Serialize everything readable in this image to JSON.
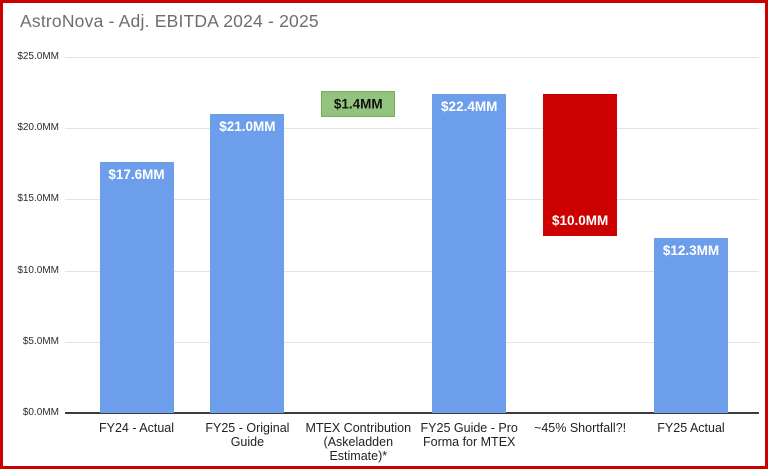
{
  "title": "AstroNova - Adj. EBITDA 2024 - 2025",
  "colors": {
    "frame_border": "#cc0000",
    "bar_blue": "#6d9eeb",
    "bar_red": "#cc0000",
    "bar_green": "#93c47d",
    "gridline": "#e4e4e4",
    "axis_line": "#3c3c3c",
    "title_text": "#6e6e6e"
  },
  "chart_data": {
    "type": "bar",
    "title": "AstroNova - Adj. EBITDA 2024 - 2025",
    "xlabel": "",
    "ylabel": "",
    "ylim": [
      0,
      25
    ],
    "grid": true,
    "legend": "none",
    "yticks": [
      {
        "value": 0,
        "label": "$0.0MM"
      },
      {
        "value": 5,
        "label": "$5.0MM"
      },
      {
        "value": 10,
        "label": "$10.0MM"
      },
      {
        "value": 15,
        "label": "$15.0MM"
      },
      {
        "value": 20,
        "label": "$20.0MM"
      },
      {
        "value": 25,
        "label": "$25.0MM"
      }
    ],
    "bars": [
      {
        "category": "FY24 - Actual",
        "start": 0,
        "end": 17.6,
        "value": 17.6,
        "label": "$17.6MM",
        "color": "blue",
        "label_position": "top"
      },
      {
        "category": "FY25 - Original Guide",
        "start": 0,
        "end": 21.0,
        "value": 21.0,
        "label": "$21.0MM",
        "color": "blue",
        "label_position": "top"
      },
      {
        "category": "MTEX Contribution (Askeladden Estimate)*",
        "start": 21.0,
        "end": 22.4,
        "value": 1.4,
        "label": "$1.4MM",
        "color": "green",
        "label_position": "center"
      },
      {
        "category": "FY25 Guide - Pro Forma for MTEX",
        "start": 0,
        "end": 22.4,
        "value": 22.4,
        "label": "$22.4MM",
        "color": "blue",
        "label_position": "top"
      },
      {
        "category": "~45% Shortfall?!",
        "start": 12.4,
        "end": 22.4,
        "value": 10.0,
        "label": "$10.0MM",
        "color": "red",
        "label_position": "bottom"
      },
      {
        "category": "FY25 Actual",
        "start": 0,
        "end": 12.3,
        "value": 12.3,
        "label": "$12.3MM",
        "color": "blue",
        "label_position": "top"
      }
    ]
  }
}
